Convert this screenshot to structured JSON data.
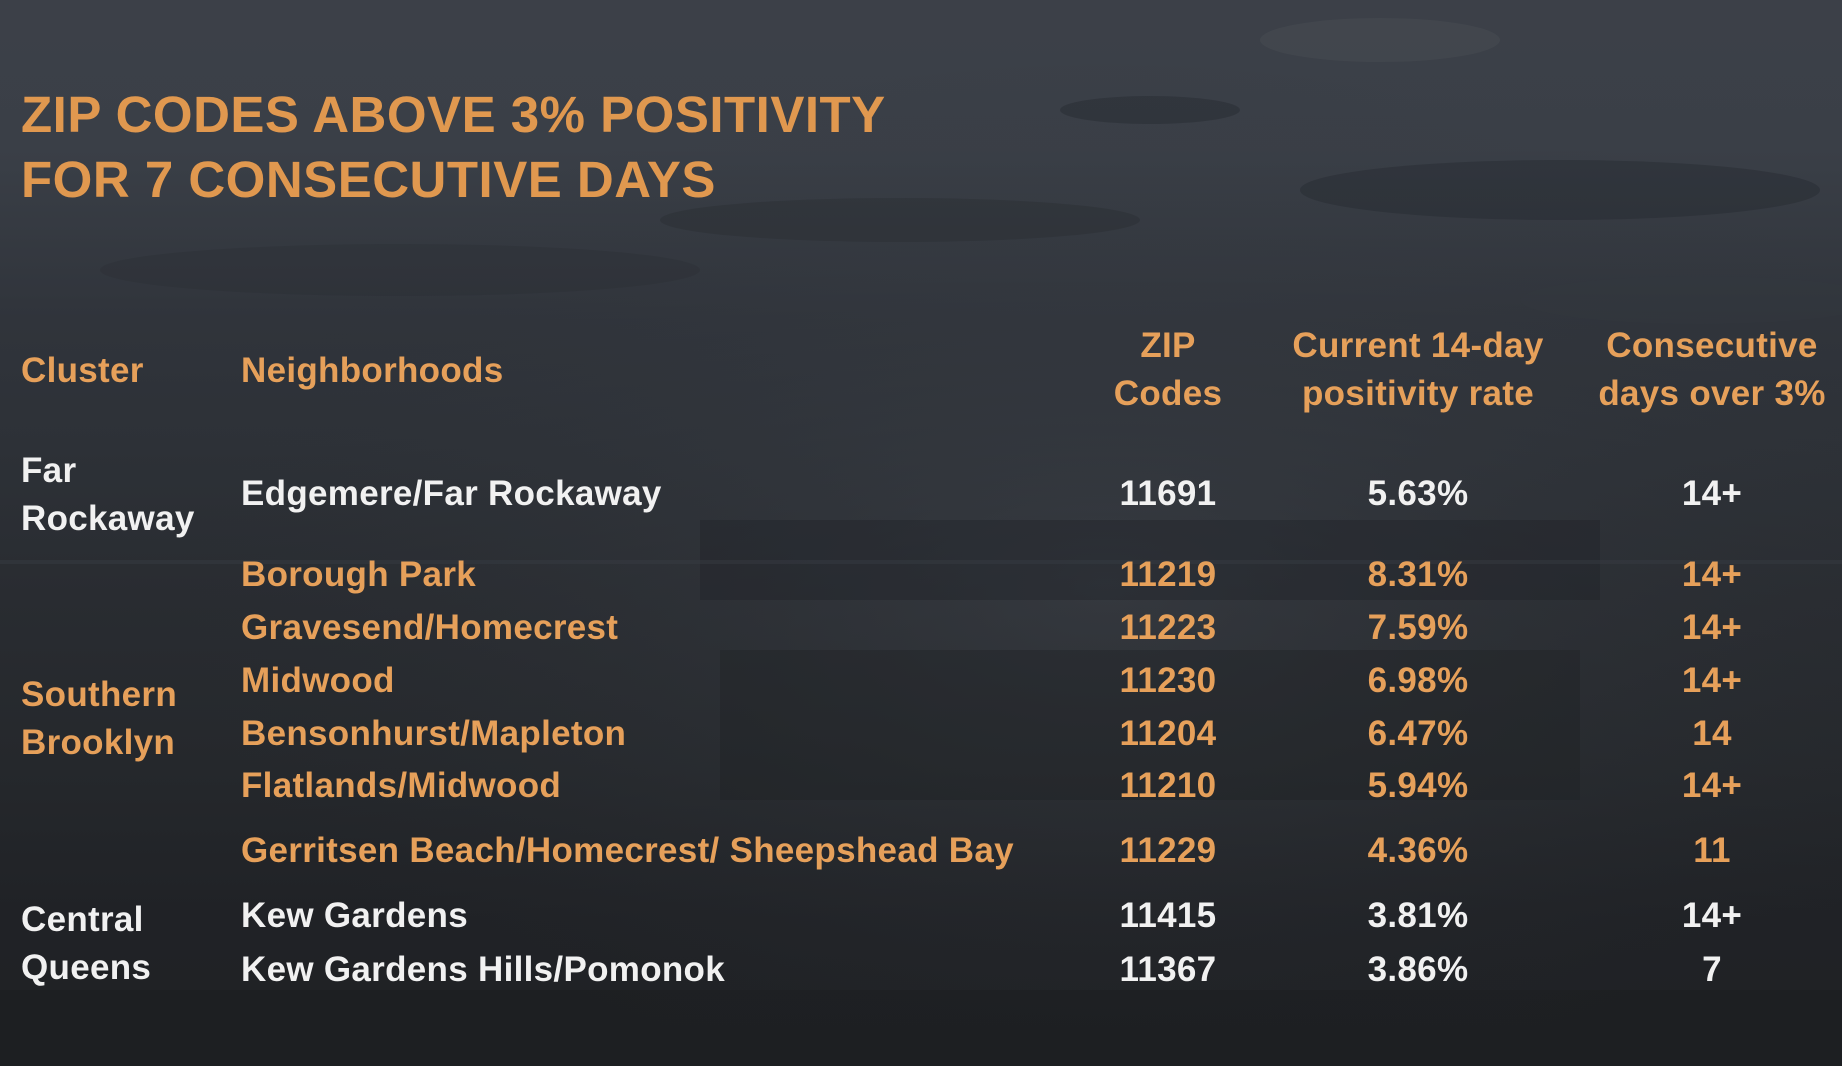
{
  "title": {
    "line1": "ZIP CODES ABOVE 3% POSITIVITY",
    "line2": "FOR 7 CONSECUTIVE DAYS"
  },
  "headers": {
    "cluster": "Cluster",
    "neighborhoods": "Neighborhoods",
    "zip_line1": "ZIP",
    "zip_line2": "Codes",
    "rate_line1": "Current 14-day",
    "rate_line2": "positivity rate",
    "days_line1": "Consecutive",
    "days_line2": "days over 3%"
  },
  "clusters": {
    "far_rockaway": {
      "line1": "Far",
      "line2": "Rockaway"
    },
    "southern_brooklyn": {
      "line1": "Southern",
      "line2": "Brooklyn"
    },
    "central_queens": {
      "line1": "Central",
      "line2": "Queens"
    }
  },
  "rows": [
    {
      "neighborhood": "Edgemere/Far Rockaway",
      "zip": "11691",
      "rate": "5.63%",
      "days": "14+"
    },
    {
      "neighborhood": "Borough Park",
      "zip": "11219",
      "rate": "8.31%",
      "days": "14+"
    },
    {
      "neighborhood": "Gravesend/Homecrest",
      "zip": "11223",
      "rate": "7.59%",
      "days": "14+"
    },
    {
      "neighborhood": "Midwood",
      "zip": "11230",
      "rate": "6.98%",
      "days": "14+"
    },
    {
      "neighborhood": "Bensonhurst/Mapleton",
      "zip": "11204",
      "rate": "6.47%",
      "days": "14"
    },
    {
      "neighborhood": "Flatlands/Midwood",
      "zip": "11210",
      "rate": "5.94%",
      "days": "14+"
    },
    {
      "neighborhood": "Gerritsen Beach/Homecrest/ Sheepshead Bay",
      "zip": "11229",
      "rate": "4.36%",
      "days": "11"
    },
    {
      "neighborhood": "Kew Gardens",
      "zip": "11415",
      "rate": "3.81%",
      "days": "14+"
    },
    {
      "neighborhood": "Kew Gardens Hills/Pomonok",
      "zip": "11367",
      "rate": "3.86%",
      "days": "7"
    }
  ],
  "colors": {
    "accent": "#e6a05a",
    "text_light": "#f1f1f1",
    "background": "#2d3137"
  }
}
